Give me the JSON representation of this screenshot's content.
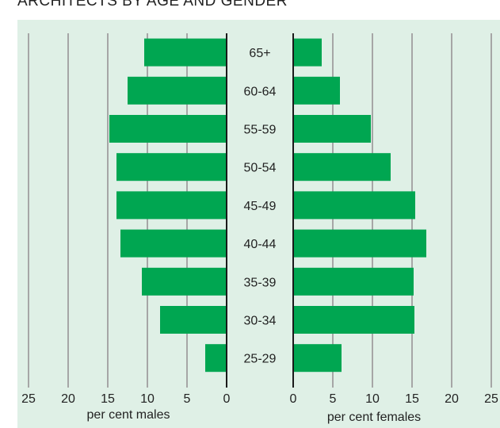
{
  "title": "ARCHITECTS BY AGE AND GENDER",
  "colors": {
    "bar": "#00a651",
    "background": "#dff0e6",
    "grid": "#a6a6a6",
    "axis": "#1a1a1a"
  },
  "chart_data": {
    "type": "bar",
    "orientation": "horizontal",
    "layout": "population-pyramid",
    "categories": [
      "65+",
      "60-64",
      "55-59",
      "50-54",
      "45-49",
      "40-44",
      "35-39",
      "30-34",
      "25-29"
    ],
    "series": [
      {
        "name": "males",
        "values": [
          10.4,
          12.5,
          14.8,
          13.9,
          13.9,
          13.4,
          10.7,
          8.4,
          2.7
        ]
      },
      {
        "name": "females",
        "values": [
          3.6,
          5.9,
          9.8,
          12.3,
          15.4,
          16.8,
          15.2,
          15.3,
          6.1
        ]
      }
    ],
    "left_axis": {
      "label": "per cent males",
      "ticks": [
        "25",
        "20",
        "15",
        "10",
        "5",
        "0"
      ],
      "range": [
        0,
        25
      ]
    },
    "right_axis": {
      "label": "per cent females",
      "ticks": [
        "0",
        "5",
        "10",
        "15",
        "20",
        "25"
      ],
      "range": [
        0,
        25
      ]
    },
    "grid": true
  }
}
